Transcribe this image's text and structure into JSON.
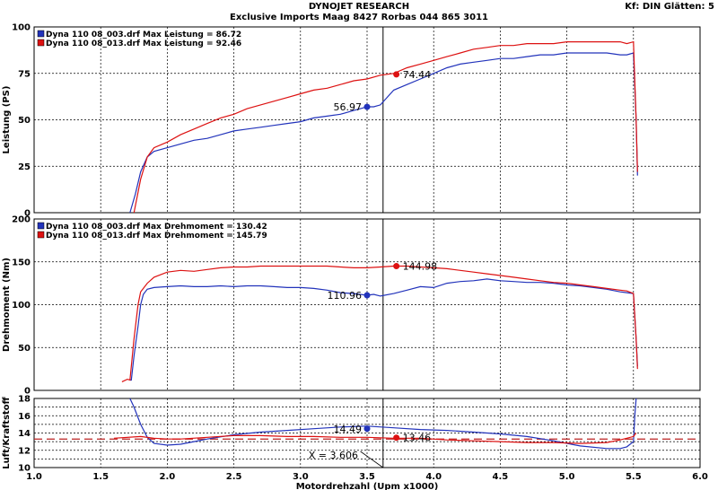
{
  "header": {
    "title": "DYNOJET RESEARCH",
    "subtitle": "Exclusive Imports Maag  8427 Rorbas   044 865 3011",
    "settings": "Kf: DIN  Glätten: 5"
  },
  "colors": {
    "blue": "#2233bb",
    "red": "#dd1111",
    "dash": "#bb2222",
    "grid": "#000000"
  },
  "chart_data": [
    {
      "type": "line",
      "id": "leistung",
      "ylabel": "Leistung (PS)",
      "ylim": [
        0,
        100
      ],
      "yticks": [
        "0",
        "25",
        "50",
        "75",
        "100"
      ],
      "xlim": [
        1.0,
        6.0
      ],
      "legend": [
        {
          "text": "Dyna 110 08_003.drf Max Leistung = 86.72",
          "color": "blue"
        },
        {
          "text": "Dyna 110 08_013.drf Max Leistung = 92.46",
          "color": "red"
        }
      ],
      "series": [
        {
          "color": "blue",
          "x": [
            1.72,
            1.76,
            1.8,
            1.85,
            1.9,
            2.0,
            2.1,
            2.2,
            2.3,
            2.4,
            2.5,
            2.6,
            2.7,
            2.8,
            2.9,
            3.0,
            3.1,
            3.2,
            3.3,
            3.4,
            3.45,
            3.5,
            3.55,
            3.6,
            3.7,
            3.8,
            3.9,
            4.0,
            4.1,
            4.2,
            4.3,
            4.4,
            4.5,
            4.6,
            4.7,
            4.8,
            4.9,
            5.0,
            5.1,
            5.2,
            5.3,
            5.4,
            5.45,
            5.5,
            5.52,
            5.53
          ],
          "y": [
            0,
            10,
            22,
            30,
            33,
            35,
            37,
            39,
            40,
            42,
            44,
            45,
            46,
            47,
            48,
            49,
            51,
            52,
            53,
            55,
            56,
            57,
            57,
            58,
            66,
            69,
            72,
            75,
            78,
            80,
            81,
            82,
            83,
            83,
            84,
            85,
            85,
            86,
            86,
            86,
            86,
            85,
            85,
            86,
            50,
            20
          ]
        },
        {
          "color": "red",
          "x": [
            1.75,
            1.8,
            1.85,
            1.9,
            2.0,
            2.1,
            2.2,
            2.3,
            2.4,
            2.5,
            2.6,
            2.7,
            2.8,
            2.9,
            3.0,
            3.1,
            3.2,
            3.3,
            3.4,
            3.5,
            3.6,
            3.7,
            3.8,
            3.9,
            4.0,
            4.1,
            4.2,
            4.3,
            4.4,
            4.5,
            4.6,
            4.7,
            4.8,
            4.9,
            5.0,
            5.1,
            5.2,
            5.3,
            5.4,
            5.45,
            5.5,
            5.52,
            5.53
          ],
          "y": [
            0,
            18,
            30,
            35,
            38,
            42,
            45,
            48,
            51,
            53,
            56,
            58,
            60,
            62,
            64,
            66,
            67,
            69,
            71,
            72,
            74,
            75,
            78,
            80,
            82,
            84,
            86,
            88,
            89,
            90,
            90,
            91,
            91,
            91,
            92,
            92,
            92,
            92,
            92,
            91,
            92,
            50,
            22
          ]
        }
      ],
      "markers": [
        {
          "x": 3.5,
          "y": 56.97,
          "label": "56.97",
          "color": "blue",
          "side": "left"
        },
        {
          "x": 3.72,
          "y": 74.44,
          "label": "74.44",
          "color": "red",
          "side": "right"
        }
      ],
      "vline": 3.62
    },
    {
      "type": "line",
      "id": "drehmoment",
      "ylabel": "Drehmoment (Nm)",
      "ylim": [
        0,
        200
      ],
      "yticks": [
        "0",
        "50",
        "100",
        "150",
        "200"
      ],
      "xlim": [
        1.0,
        6.0
      ],
      "legend": [
        {
          "text": "Dyna 110 08_003.drf Max Drehmoment = 130.42",
          "color": "blue"
        },
        {
          "text": "Dyna 110 08_013.drf Max Drehmoment = 145.79",
          "color": "red"
        }
      ],
      "series": [
        {
          "color": "blue",
          "x": [
            1.72,
            1.73,
            1.75,
            1.78,
            1.8,
            1.82,
            1.85,
            1.9,
            2.0,
            2.1,
            2.2,
            2.3,
            2.4,
            2.5,
            2.6,
            2.7,
            2.8,
            2.9,
            3.0,
            3.1,
            3.2,
            3.3,
            3.4,
            3.5,
            3.55,
            3.6,
            3.7,
            3.8,
            3.9,
            4.0,
            4.1,
            4.2,
            4.3,
            4.4,
            4.5,
            4.6,
            4.7,
            4.8,
            4.9,
            5.0,
            5.1,
            5.2,
            5.3,
            5.4,
            5.45,
            5.5,
            5.52,
            5.53
          ],
          "y": [
            12,
            12,
            40,
            75,
            100,
            112,
            118,
            120,
            121,
            122,
            121,
            121,
            122,
            121,
            122,
            122,
            121,
            120,
            120,
            119,
            117,
            114,
            113,
            111,
            112,
            110,
            113,
            117,
            121,
            120,
            125,
            127,
            128,
            130,
            128,
            127,
            126,
            126,
            125,
            123,
            122,
            120,
            118,
            115,
            114,
            113,
            60,
            28
          ]
        },
        {
          "color": "red",
          "x": [
            1.66,
            1.7,
            1.72,
            1.75,
            1.78,
            1.8,
            1.85,
            1.9,
            2.0,
            2.1,
            2.2,
            2.3,
            2.4,
            2.5,
            2.6,
            2.7,
            2.8,
            2.9,
            3.0,
            3.1,
            3.2,
            3.3,
            3.4,
            3.5,
            3.6,
            3.7,
            3.8,
            3.9,
            4.0,
            4.1,
            4.2,
            4.3,
            4.4,
            4.5,
            4.6,
            4.7,
            4.8,
            4.9,
            5.0,
            5.1,
            5.2,
            5.3,
            5.4,
            5.45,
            5.5,
            5.52,
            5.53
          ],
          "y": [
            10,
            13,
            12,
            60,
            100,
            115,
            125,
            132,
            138,
            140,
            139,
            141,
            143,
            144,
            144,
            145,
            145,
            145,
            145,
            145,
            145,
            144,
            143,
            143,
            144,
            145,
            145,
            144,
            143,
            142,
            140,
            138,
            136,
            134,
            132,
            130,
            128,
            126,
            125,
            123,
            121,
            119,
            117,
            116,
            113,
            60,
            25
          ]
        }
      ],
      "markers": [
        {
          "x": 3.5,
          "y": 110.96,
          "label": "110.96",
          "color": "blue",
          "side": "left"
        },
        {
          "x": 3.72,
          "y": 144.98,
          "label": "144.98",
          "color": "red",
          "side": "right"
        }
      ],
      "vline": 3.62
    },
    {
      "type": "line",
      "id": "luft",
      "ylabel": "Luft/Kraftstoff",
      "ylim": [
        10,
        18
      ],
      "yticks": [
        "10",
        "12",
        "14",
        "16",
        "18"
      ],
      "xlim": [
        1.0,
        6.0
      ],
      "xticks": [
        "1.0",
        "1.5",
        "2.0",
        "2.5",
        "3.0",
        "3.5",
        "4.0",
        "4.5",
        "5.0",
        "5.5",
        "6.0"
      ],
      "xlabel": "Motordrehzahl (Upm x1000)",
      "series": [
        {
          "color": "blue",
          "x": [
            1.72,
            1.75,
            1.8,
            1.85,
            1.9,
            2.0,
            2.1,
            2.2,
            2.3,
            2.5,
            2.7,
            2.9,
            3.1,
            3.3,
            3.5,
            3.7,
            3.9,
            4.1,
            4.3,
            4.5,
            4.7,
            4.9,
            5.1,
            5.3,
            5.4,
            5.45,
            5.5,
            5.51,
            5.52
          ],
          "y": [
            18,
            17,
            15,
            13.5,
            12.8,
            12.6,
            12.7,
            13.0,
            13.3,
            13.8,
            14.1,
            14.3,
            14.5,
            14.7,
            14.8,
            14.6,
            14.4,
            14.3,
            14.1,
            13.9,
            13.6,
            13.1,
            12.5,
            12.2,
            12.2,
            12.4,
            13,
            16,
            18
          ]
        },
        {
          "color": "red",
          "x": [
            1.6,
            1.8,
            1.9,
            2.0,
            2.1,
            2.3,
            2.5,
            2.7,
            2.9,
            3.1,
            3.3,
            3.5,
            3.7,
            3.9,
            4.1,
            4.3,
            4.5,
            4.7,
            4.9,
            5.1,
            5.3,
            5.4,
            5.5,
            5.52
          ],
          "y": [
            13.4,
            13.6,
            13.4,
            13.3,
            13.3,
            13.5,
            13.7,
            13.7,
            13.6,
            13.6,
            13.5,
            13.5,
            13.4,
            13.4,
            13.2,
            13.1,
            13.0,
            12.9,
            12.9,
            12.8,
            12.9,
            13.2,
            13.6,
            14.0
          ]
        }
      ],
      "refline": 13.3,
      "markers": [
        {
          "x": 3.5,
          "y": 14.49,
          "label": "14.49",
          "color": "blue",
          "side": "left"
        },
        {
          "x": 3.72,
          "y": 13.46,
          "label": "13.46",
          "color": "red",
          "side": "right"
        }
      ],
      "xmarker": {
        "label": "X = 3.606"
      },
      "vline": 3.62
    }
  ]
}
